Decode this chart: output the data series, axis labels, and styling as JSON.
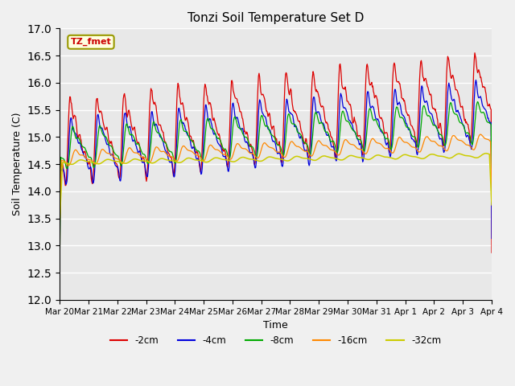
{
  "title": "Tonzi Soil Temperature Set D",
  "xlabel": "Time",
  "ylabel": "Soil Temperature (C)",
  "ylim": [
    12.0,
    17.0
  ],
  "yticks": [
    12.0,
    12.5,
    13.0,
    13.5,
    14.0,
    14.5,
    15.0,
    15.5,
    16.0,
    16.5,
    17.0
  ],
  "series_colors": {
    "-2cm": "#dd0000",
    "-4cm": "#0000dd",
    "-8cm": "#00aa00",
    "-16cm": "#ff8800",
    "-32cm": "#cccc00"
  },
  "legend_label": "TZ_fmet",
  "x_tick_labels": [
    "Mar 20",
    "Mar 21",
    "Mar 22",
    "Mar 23",
    "Mar 24",
    "Mar 25",
    "Mar 26",
    "Mar 27",
    "Mar 28",
    "Mar 29",
    "Mar 30",
    "Mar 31",
    "Apr 1",
    "Apr 2",
    "Apr 3",
    "Apr 4"
  ],
  "background_color": "#e8e8e8",
  "plot_background": "#e8e8e8",
  "fig_background": "#f0f0f0"
}
